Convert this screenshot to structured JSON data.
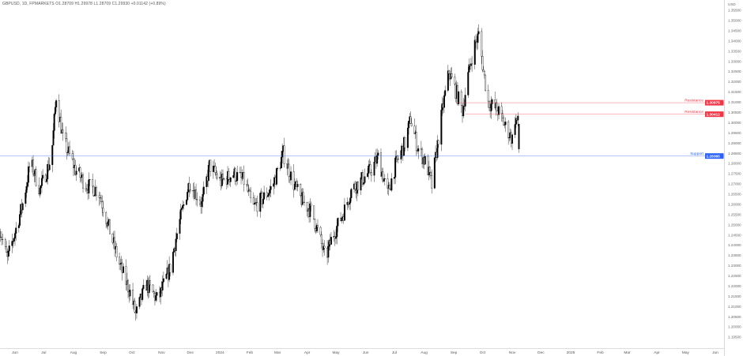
{
  "header": {
    "symbol": "GBPUSD, 1D, FPMARKETS",
    "ohlc": "O1.28709 H1.29978 L1.28709 C1.29930 +0.01142 (+0.89%)"
  },
  "axis": {
    "currency": "USD"
  },
  "chart_data": {
    "type": "candlestick",
    "title": "GBPUSD, 1D, FPMARKETS",
    "ylim": [
      1.195,
      1.355
    ],
    "y_ticks": [
      "1.35500",
      "1.35000",
      "1.34500",
      "1.34000",
      "1.33500",
      "1.33000",
      "1.32500",
      "1.32000",
      "1.31500",
      "1.31000",
      "1.30500",
      "1.30000",
      "1.29500",
      "1.29000",
      "1.28500",
      "1.28000",
      "1.27500",
      "1.27000",
      "1.26500",
      "1.26000",
      "1.25500",
      "1.25000",
      "1.24500",
      "1.24000",
      "1.23500",
      "1.23000",
      "1.22500",
      "1.22000",
      "1.21500",
      "1.21000",
      "1.20500",
      "1.20000",
      "1.19500"
    ],
    "x_ticks": [
      "Jun",
      "Jul",
      "Aug",
      "Sep",
      "Oct",
      "Nov",
      "Dec",
      "2024",
      "Feb",
      "Mar",
      "Apr",
      "May",
      "Jun",
      "Jul",
      "Aug",
      "Sep",
      "Oct",
      "Nov",
      "Dec",
      "2025",
      "Feb",
      "Mar",
      "Apr",
      "May",
      "Jun"
    ],
    "x_tick_dates": [
      "2023-06-01",
      "2023-07-01",
      "2023-08-01",
      "2023-09-01",
      "2023-10-01",
      "2023-11-01",
      "2023-12-01",
      "2024-01-01",
      "2024-02-01",
      "2024-03-01",
      "2024-04-01",
      "2024-05-01",
      "2024-06-01",
      "2024-07-01",
      "2024-08-01",
      "2024-09-01",
      "2024-10-01",
      "2024-11-01",
      "2024-12-01",
      "2025-01-01",
      "2025-02-01",
      "2025-03-01",
      "2025-04-01",
      "2025-05-01",
      "2025-06-01"
    ],
    "approx_closes": [
      [
        "2023-05-16",
        1.248
      ],
      [
        "2023-05-24",
        1.233
      ],
      [
        "2023-06-02",
        1.248
      ],
      [
        "2023-06-10",
        1.262
      ],
      [
        "2023-06-17",
        1.281
      ],
      [
        "2023-06-27",
        1.267
      ],
      [
        "2023-07-09",
        1.283
      ],
      [
        "2023-07-14",
        1.313
      ],
      [
        "2023-07-21",
        1.292
      ],
      [
        "2023-08-03",
        1.277
      ],
      [
        "2023-08-15",
        1.269
      ],
      [
        "2023-08-27",
        1.267
      ],
      [
        "2023-09-05",
        1.252
      ],
      [
        "2023-09-17",
        1.232
      ],
      [
        "2023-09-29",
        1.217
      ],
      [
        "2023-10-05",
        1.206
      ],
      [
        "2023-10-16",
        1.221
      ],
      [
        "2023-10-28",
        1.213
      ],
      [
        "2023-11-10",
        1.229
      ],
      [
        "2023-11-18",
        1.248
      ],
      [
        "2023-11-30",
        1.271
      ],
      [
        "2023-12-13",
        1.26
      ],
      [
        "2023-12-21",
        1.279
      ],
      [
        "2024-01-02",
        1.271
      ],
      [
        "2024-01-15",
        1.275
      ],
      [
        "2024-01-27",
        1.271
      ],
      [
        "2024-02-04",
        1.258
      ],
      [
        "2024-02-17",
        1.264
      ],
      [
        "2024-02-25",
        1.269
      ],
      [
        "2024-03-07",
        1.285
      ],
      [
        "2024-03-17",
        1.271
      ],
      [
        "2024-03-25",
        1.263
      ],
      [
        "2024-04-06",
        1.256
      ],
      [
        "2024-04-14",
        1.244
      ],
      [
        "2024-04-20",
        1.233
      ],
      [
        "2024-04-27",
        1.244
      ],
      [
        "2024-05-09",
        1.256
      ],
      [
        "2024-05-17",
        1.267
      ],
      [
        "2024-05-30",
        1.273
      ],
      [
        "2024-06-07",
        1.277
      ],
      [
        "2024-06-14",
        1.283
      ],
      [
        "2024-06-24",
        1.265
      ],
      [
        "2024-07-02",
        1.279
      ],
      [
        "2024-07-12",
        1.29
      ],
      [
        "2024-07-18",
        1.302
      ],
      [
        "2024-07-25",
        1.288
      ],
      [
        "2024-08-04",
        1.279
      ],
      [
        "2024-08-09",
        1.269
      ],
      [
        "2024-08-14",
        1.286
      ],
      [
        "2024-08-20",
        1.306
      ],
      [
        "2024-08-27",
        1.325
      ],
      [
        "2024-09-02",
        1.317
      ],
      [
        "2024-09-10",
        1.306
      ],
      [
        "2024-09-16",
        1.323
      ],
      [
        "2024-09-22",
        1.337
      ],
      [
        "2024-09-27",
        1.343
      ],
      [
        "2024-10-02",
        1.325
      ],
      [
        "2024-10-07",
        1.31
      ],
      [
        "2024-10-17",
        1.306
      ],
      [
        "2024-10-25",
        1.298
      ],
      [
        "2024-11-01",
        1.292
      ],
      [
        "2024-11-04",
        1.302
      ],
      [
        "2024-11-08",
        1.2993
      ]
    ],
    "levels": [
      {
        "label": "Resistance",
        "value": 1.30975,
        "tag": "1.30975",
        "color": "#f23645",
        "start": "2024-09-05"
      },
      {
        "label": "Resistance",
        "value": 1.30412,
        "tag": "1.30412",
        "color": "#f23645",
        "start": "2024-09-13"
      },
      {
        "label": "Support",
        "value": 1.28365,
        "tag": "1.28365",
        "color": "#2962ff",
        "start": "2023-05-16"
      }
    ],
    "colors": {
      "up": "#000000",
      "down": "#ffffff",
      "wick": "#000000"
    },
    "grid": false
  }
}
